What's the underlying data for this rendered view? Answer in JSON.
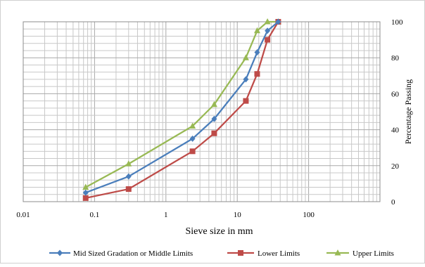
{
  "chart_data": {
    "type": "line",
    "xlabel": "Sieve size in  mm",
    "ylabel": "Percentage Passing",
    "x_scale": "log",
    "xlim": [
      0.01,
      1000
    ],
    "ylim": [
      0,
      100
    ],
    "x_ticks": [
      {
        "value": 0.01,
        "label": "0.01"
      },
      {
        "value": 0.1,
        "label": "0.1"
      },
      {
        "value": 1,
        "label": "1"
      },
      {
        "value": 10,
        "label": "10"
      },
      {
        "value": 100,
        "label": "100"
      }
    ],
    "y_ticks": [
      {
        "value": 0,
        "label": "0"
      },
      {
        "value": 20,
        "label": "20"
      },
      {
        "value": 40,
        "label": "40"
      },
      {
        "value": 60,
        "label": "60"
      },
      {
        "value": 80,
        "label": "80"
      },
      {
        "value": 100,
        "label": "100"
      }
    ],
    "grid": true,
    "legend_position": "bottom",
    "series": [
      {
        "name": "Mid Sized Gradation or Middle Limits",
        "color": "#4a7ebb",
        "marker": "diamond",
        "x": [
          0.075,
          0.3,
          2.36,
          4.75,
          13.2,
          19,
          26.5,
          37.5
        ],
        "y": [
          5,
          14,
          35,
          46,
          68,
          83,
          95,
          100
        ]
      },
      {
        "name": "Lower Limits",
        "color": "#be4b48",
        "marker": "square",
        "x": [
          0.075,
          0.3,
          2.36,
          4.75,
          13.2,
          19,
          26.5,
          37.5
        ],
        "y": [
          2,
          7,
          28,
          38,
          56,
          71,
          90,
          100
        ]
      },
      {
        "name": "Upper Limits",
        "color": "#98b954",
        "marker": "triangle",
        "x": [
          0.075,
          0.3,
          2.36,
          4.75,
          13.2,
          19,
          26.5,
          37.5
        ],
        "y": [
          8,
          21,
          42,
          54,
          80,
          95,
          100,
          100
        ]
      }
    ]
  }
}
